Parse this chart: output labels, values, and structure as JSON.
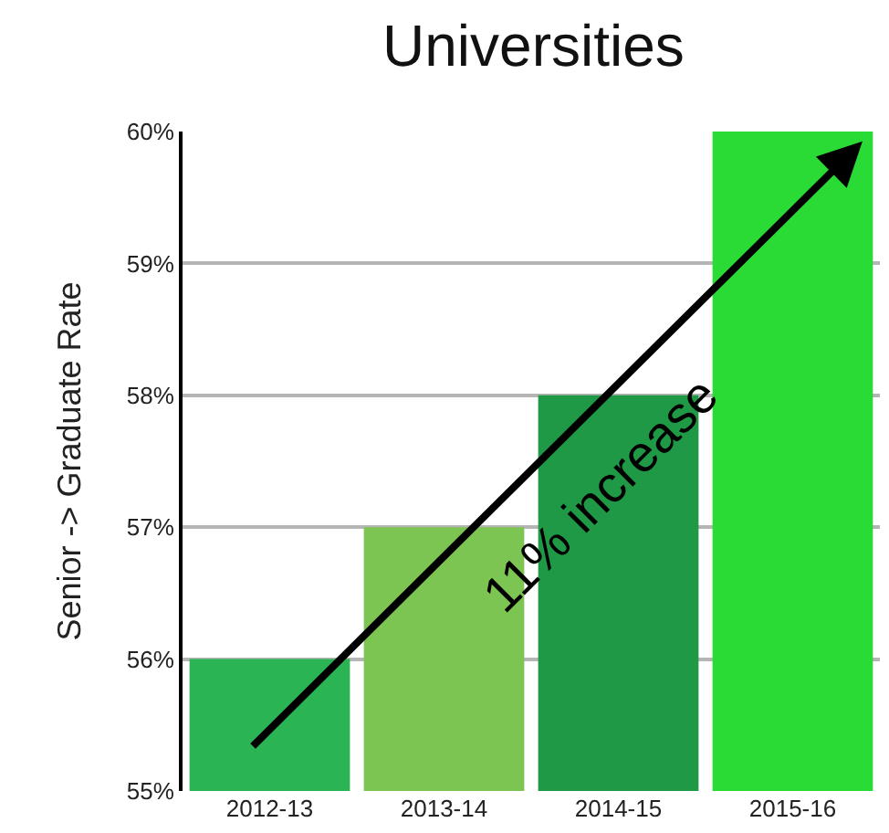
{
  "chart_data": {
    "type": "bar",
    "title": "Universities",
    "ylabel": "Senior -> Graduate Rate",
    "categories": [
      "2012-13",
      "2013-14",
      "2014-15",
      "2015-16"
    ],
    "values": [
      56,
      57,
      58,
      60
    ],
    "colors": [
      "#2ab453",
      "#7dc552",
      "#1f9946",
      "#2bdb35"
    ],
    "ylim": [
      55,
      60
    ],
    "yticks": [
      {
        "value": 55,
        "label": "55%"
      },
      {
        "value": 56,
        "label": "56%"
      },
      {
        "value": 57,
        "label": "57%"
      },
      {
        "value": 58,
        "label": "58%"
      },
      {
        "value": 59,
        "label": "59%"
      },
      {
        "value": 60,
        "label": "60%"
      }
    ],
    "grid": "y",
    "annotations": [
      "11% increase"
    ]
  }
}
